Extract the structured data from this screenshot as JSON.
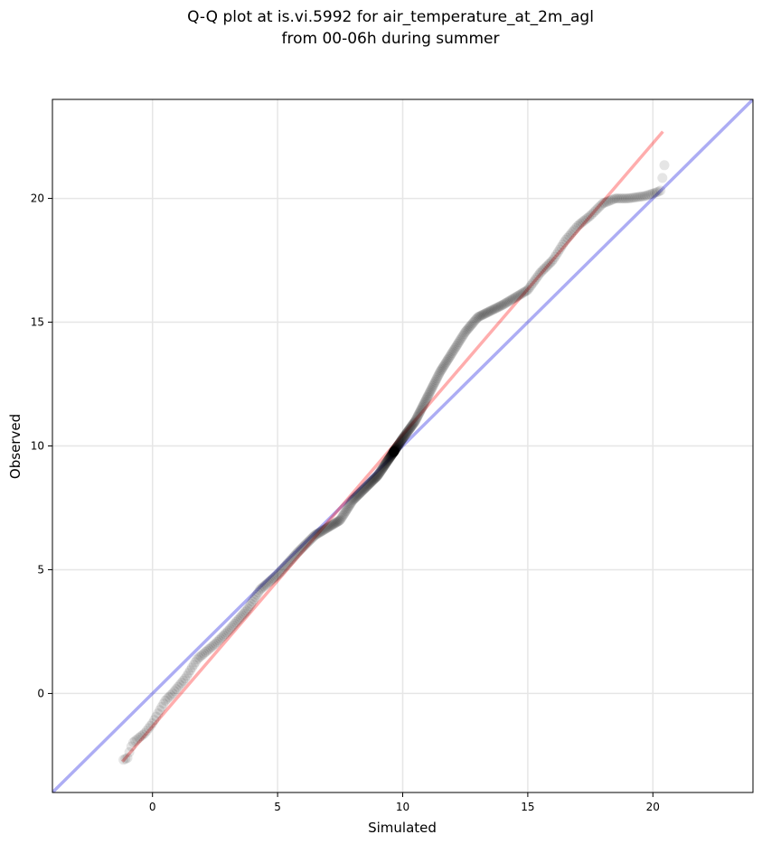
{
  "chart_data": {
    "type": "scatter",
    "title_line1": "Q-Q plot at is.vi.5992 for air_temperature_at_2m_agl",
    "title_line2": "from 00-06h during summer",
    "xlabel": "Simulated",
    "ylabel": "Observed",
    "xlim": [
      -4,
      24
    ],
    "ylim": [
      -4,
      24
    ],
    "x_ticks": [
      0,
      5,
      10,
      15,
      20
    ],
    "y_ticks": [
      0,
      5,
      10,
      15,
      20
    ],
    "grid": true,
    "identity_line": {
      "color": "#0000dd",
      "opacity": 0.32,
      "from": [
        -4,
        -4
      ],
      "to": [
        24,
        24
      ]
    },
    "fit_line": {
      "color": "#ff0000",
      "opacity": 0.32,
      "from": [
        -1.2,
        -2.75
      ],
      "to": [
        20.4,
        22.7
      ]
    },
    "point_color": "#000000",
    "quantile_anchors": [
      [
        -1.2,
        -2.7
      ],
      [
        -1.0,
        -2.6
      ],
      [
        -0.8,
        -2.0
      ],
      [
        -0.3,
        -1.6
      ],
      [
        0.0,
        -1.2
      ],
      [
        0.5,
        -0.3
      ],
      [
        0.8,
        0.0
      ],
      [
        1.3,
        0.6
      ],
      [
        1.8,
        1.4
      ],
      [
        2.5,
        2.0
      ],
      [
        3.0,
        2.5
      ],
      [
        3.8,
        3.4
      ],
      [
        4.3,
        4.2
      ],
      [
        5.0,
        4.8
      ],
      [
        5.8,
        5.7
      ],
      [
        6.5,
        6.4
      ],
      [
        7.5,
        7.0
      ],
      [
        8.0,
        7.8
      ],
      [
        9.0,
        8.8
      ],
      [
        10.0,
        10.3
      ],
      [
        10.5,
        11.0
      ],
      [
        11.0,
        12.0
      ],
      [
        11.5,
        13.0
      ],
      [
        12.0,
        13.8
      ],
      [
        12.5,
        14.6
      ],
      [
        13.0,
        15.2
      ],
      [
        14.0,
        15.7
      ],
      [
        15.0,
        16.3
      ],
      [
        15.5,
        17.0
      ],
      [
        16.0,
        17.5
      ],
      [
        16.5,
        18.3
      ],
      [
        17.0,
        18.9
      ],
      [
        17.5,
        19.3
      ],
      [
        18.0,
        19.8
      ],
      [
        18.5,
        20.0
      ],
      [
        19.0,
        20.0
      ],
      [
        19.7,
        20.1
      ],
      [
        20.3,
        20.3
      ],
      [
        20.5,
        21.6
      ]
    ],
    "quantile_count": 520
  }
}
